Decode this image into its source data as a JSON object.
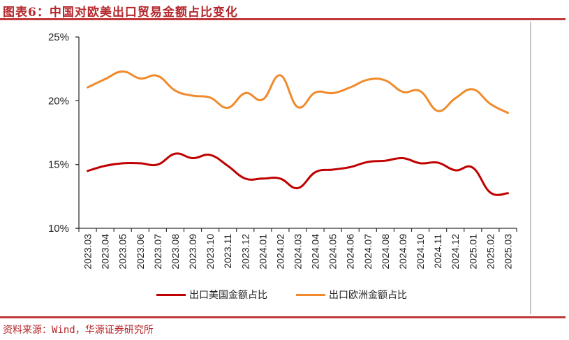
{
  "header": {
    "title": "图表6：中国对欧美出口贸易金额占比变化"
  },
  "footer": {
    "source": "资料来源：Wind，华源证券研究所"
  },
  "colors": {
    "us_series": "#c00000",
    "eu_series": "#f08a2c",
    "accent_rule": "#c0393b",
    "title_text": "#b5262b"
  },
  "legend": {
    "items": [
      {
        "label": "出口美国金额占比",
        "color": "#c00000"
      },
      {
        "label": "出口欧洲金额占比",
        "color": "#f08a2c"
      }
    ]
  },
  "chart_data": {
    "type": "line",
    "title": "图表6：中国对欧美出口贸易金额占比变化",
    "xlabel": "",
    "ylabel": "",
    "ylim": [
      10,
      25
    ],
    "yticks": [
      "10%",
      "15%",
      "20%",
      "25%"
    ],
    "grid": false,
    "legend_position": "bottom",
    "categories": [
      "2023.03",
      "2023.04",
      "2023.05",
      "2023.06",
      "2023.07",
      "2023.08",
      "2023.09",
      "2023.10",
      "2023.11",
      "2023.12",
      "2024.01",
      "2024.02",
      "2024.03",
      "2024.04",
      "2024.05",
      "2024.06",
      "2024.07",
      "2024.08",
      "2024.09",
      "2024.10",
      "2024.11",
      "2024.12",
      "2025.01",
      "2025.02",
      "2025.03"
    ],
    "series": [
      {
        "name": "出口美国金额占比",
        "color": "#c00000",
        "values": [
          14.5,
          14.9,
          15.1,
          15.1,
          15.0,
          15.85,
          15.5,
          15.75,
          14.9,
          13.9,
          13.9,
          13.9,
          13.15,
          14.4,
          14.6,
          14.8,
          15.2,
          15.3,
          15.5,
          15.1,
          15.15,
          14.55,
          14.75,
          12.8,
          12.75
        ]
      },
      {
        "name": "出口欧洲金额占比",
        "color": "#f08a2c",
        "values": [
          21.05,
          21.7,
          22.3,
          21.75,
          21.95,
          20.8,
          20.4,
          20.25,
          19.45,
          20.6,
          20.1,
          22.0,
          19.5,
          20.65,
          20.6,
          21.05,
          21.65,
          21.6,
          20.7,
          20.75,
          19.2,
          20.2,
          20.9,
          19.75,
          19.05
        ]
      }
    ]
  }
}
